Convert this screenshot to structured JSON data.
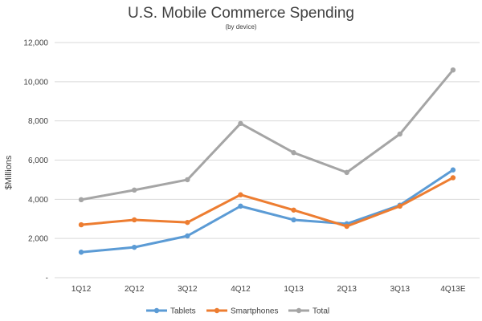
{
  "chart_data": {
    "type": "line",
    "title": "U.S. Mobile Commerce Spending",
    "subtitle": "(by device)",
    "xlabel": "",
    "ylabel": "$Millions",
    "categories": [
      "1Q12",
      "2Q12",
      "3Q12",
      "4Q12",
      "1Q13",
      "2Q13",
      "3Q13",
      "4Q13E"
    ],
    "ylim": [
      0,
      12000
    ],
    "yticks": [
      {
        "value": 0,
        "label": "-"
      },
      {
        "value": 2000,
        "label": "2,000"
      },
      {
        "value": 4000,
        "label": "4,000"
      },
      {
        "value": 6000,
        "label": "6,000"
      },
      {
        "value": 8000,
        "label": "8,000"
      },
      {
        "value": 10000,
        "label": "10,000"
      },
      {
        "value": 12000,
        "label": "12,000"
      }
    ],
    "grid": true,
    "legend_position": "bottom",
    "series": [
      {
        "name": "Tablets",
        "color": "#5B9BD5",
        "values": [
          1300,
          1550,
          2130,
          3650,
          2950,
          2750,
          3700,
          5500
        ]
      },
      {
        "name": "Smartphones",
        "color": "#ED7D31",
        "values": [
          2700,
          2950,
          2820,
          4230,
          3450,
          2620,
          3650,
          5100
        ]
      },
      {
        "name": "Total",
        "color": "#A5A5A5",
        "values": [
          3980,
          4470,
          5000,
          7870,
          6380,
          5370,
          7330,
          10600
        ]
      }
    ]
  }
}
